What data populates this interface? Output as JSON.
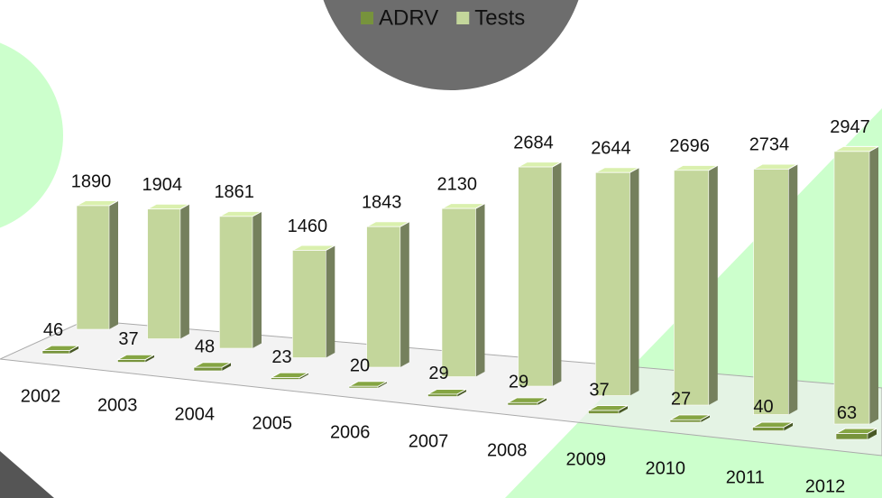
{
  "chart_data": {
    "type": "bar3d",
    "categories": [
      "2002",
      "2003",
      "2004",
      "2005",
      "2006",
      "2007",
      "2008",
      "2009",
      "2010",
      "2011",
      "2012"
    ],
    "series": [
      {
        "name": "ADRV",
        "color": "#77933c",
        "values": [
          46,
          37,
          48,
          23,
          20,
          29,
          29,
          37,
          27,
          40,
          63
        ]
      },
      {
        "name": "Tests",
        "color": "#c3d69b",
        "values": [
          1890,
          1904,
          1861,
          1460,
          1843,
          2130,
          2684,
          2644,
          2696,
          2734,
          2947
        ]
      }
    ],
    "legend": "top"
  }
}
